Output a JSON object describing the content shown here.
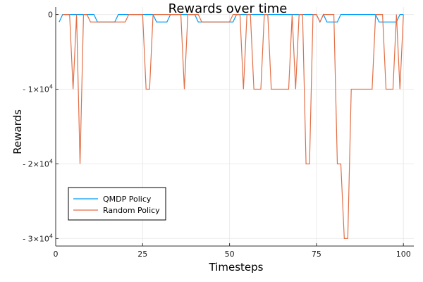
{
  "chart_data": {
    "type": "line",
    "title": "Rewards over time",
    "xlabel": "Timesteps",
    "ylabel": "Rewards",
    "xlim": [
      0,
      103
    ],
    "ylim": [
      -31000,
      1000
    ],
    "x_ticks": [
      0,
      25,
      50,
      75,
      100
    ],
    "y_ticks": [
      {
        "value": 0,
        "base": "0",
        "exp": ""
      },
      {
        "value": -10000,
        "base": "- 1×10",
        "exp": "4"
      },
      {
        "value": -20000,
        "base": "- 2×10",
        "exp": "4"
      },
      {
        "value": -30000,
        "base": "- 3×10",
        "exp": "4"
      }
    ],
    "grid": true,
    "legend_position": "bottom-left",
    "series": [
      {
        "name": "QMDP Policy",
        "color": "#009AFA",
        "points": [
          [
            1,
            -1000
          ],
          [
            2,
            0
          ],
          [
            3,
            0
          ],
          [
            4,
            0
          ],
          [
            5,
            0
          ],
          [
            6,
            0
          ],
          [
            7,
            0
          ],
          [
            8,
            0
          ],
          [
            9,
            0
          ],
          [
            10,
            0
          ],
          [
            11,
            0
          ],
          [
            12,
            -1000
          ],
          [
            13,
            -1000
          ],
          [
            14,
            -1000
          ],
          [
            15,
            -1000
          ],
          [
            16,
            -1000
          ],
          [
            17,
            -1000
          ],
          [
            18,
            0
          ],
          [
            19,
            0
          ],
          [
            20,
            0
          ],
          [
            21,
            0
          ],
          [
            22,
            0
          ],
          [
            23,
            0
          ],
          [
            24,
            0
          ],
          [
            25,
            0
          ],
          [
            26,
            0
          ],
          [
            27,
            0
          ],
          [
            28,
            0
          ],
          [
            29,
            -1000
          ],
          [
            30,
            -1000
          ],
          [
            31,
            -1000
          ],
          [
            32,
            -1000
          ],
          [
            33,
            0
          ],
          [
            34,
            0
          ],
          [
            35,
            0
          ],
          [
            36,
            0
          ],
          [
            37,
            0
          ],
          [
            38,
            0
          ],
          [
            39,
            0
          ],
          [
            40,
            0
          ],
          [
            41,
            -1000
          ],
          [
            42,
            -1000
          ],
          [
            43,
            -1000
          ],
          [
            44,
            -1000
          ],
          [
            45,
            -1000
          ],
          [
            46,
            -1000
          ],
          [
            47,
            -1000
          ],
          [
            48,
            -1000
          ],
          [
            49,
            -1000
          ],
          [
            50,
            -1000
          ],
          [
            51,
            -1000
          ],
          [
            52,
            0
          ],
          [
            53,
            0
          ],
          [
            54,
            0
          ],
          [
            55,
            0
          ],
          [
            56,
            0
          ],
          [
            57,
            0
          ],
          [
            58,
            0
          ],
          [
            59,
            0
          ],
          [
            60,
            0
          ],
          [
            61,
            0
          ],
          [
            62,
            0
          ],
          [
            63,
            0
          ],
          [
            64,
            0
          ],
          [
            65,
            0
          ],
          [
            66,
            0
          ],
          [
            67,
            0
          ],
          [
            68,
            0
          ],
          [
            69,
            0
          ],
          [
            70,
            0
          ],
          [
            71,
            0
          ],
          [
            72,
            0
          ],
          [
            73,
            0
          ],
          [
            74,
            0
          ],
          [
            75,
            0
          ],
          [
            76,
            -1000
          ],
          [
            77,
            0
          ],
          [
            78,
            -1000
          ],
          [
            79,
            -1000
          ],
          [
            80,
            -1000
          ],
          [
            81,
            -1000
          ],
          [
            82,
            0
          ],
          [
            83,
            0
          ],
          [
            84,
            0
          ],
          [
            85,
            0
          ],
          [
            86,
            0
          ],
          [
            87,
            0
          ],
          [
            88,
            0
          ],
          [
            89,
            0
          ],
          [
            90,
            0
          ],
          [
            91,
            0
          ],
          [
            92,
            0
          ],
          [
            93,
            -1000
          ],
          [
            94,
            -1000
          ],
          [
            95,
            -1000
          ],
          [
            96,
            -1000
          ],
          [
            97,
            -1000
          ],
          [
            98,
            -1000
          ],
          [
            99,
            0
          ],
          [
            100,
            0
          ]
        ]
      },
      {
        "name": "Random Policy",
        "color": "#E26F46",
        "points": [
          [
            2,
            0
          ],
          [
            3,
            0
          ],
          [
            4,
            0
          ],
          [
            5,
            -10000
          ],
          [
            6,
            0
          ],
          [
            7,
            -20000
          ],
          [
            8,
            0
          ],
          [
            9,
            0
          ],
          [
            10,
            -1000
          ],
          [
            11,
            -1000
          ],
          [
            12,
            -1000
          ],
          [
            13,
            -1000
          ],
          [
            14,
            -1000
          ],
          [
            15,
            -1000
          ],
          [
            16,
            -1000
          ],
          [
            17,
            -1000
          ],
          [
            18,
            -1000
          ],
          [
            19,
            -1000
          ],
          [
            20,
            -1000
          ],
          [
            21,
            0
          ],
          [
            22,
            0
          ],
          [
            23,
            0
          ],
          [
            24,
            0
          ],
          [
            25,
            0
          ],
          [
            26,
            -10000
          ],
          [
            27,
            -10000
          ],
          [
            28,
            0
          ],
          [
            29,
            0
          ],
          [
            30,
            0
          ],
          [
            31,
            0
          ],
          [
            32,
            0
          ],
          [
            33,
            0
          ],
          [
            34,
            0
          ],
          [
            35,
            0
          ],
          [
            36,
            0
          ],
          [
            37,
            -10000
          ],
          [
            38,
            0
          ],
          [
            39,
            0
          ],
          [
            40,
            0
          ],
          [
            41,
            0
          ],
          [
            42,
            -1000
          ],
          [
            43,
            -1000
          ],
          [
            44,
            -1000
          ],
          [
            45,
            -1000
          ],
          [
            46,
            -1000
          ],
          [
            47,
            -1000
          ],
          [
            48,
            -1000
          ],
          [
            49,
            -1000
          ],
          [
            50,
            -1000
          ],
          [
            51,
            0
          ],
          [
            52,
            0
          ],
          [
            53,
            0
          ],
          [
            54,
            -10000
          ],
          [
            55,
            0
          ],
          [
            56,
            0
          ],
          [
            57,
            -10000
          ],
          [
            58,
            -10000
          ],
          [
            59,
            -10000
          ],
          [
            60,
            0
          ],
          [
            61,
            0
          ],
          [
            62,
            -10000
          ],
          [
            63,
            -10000
          ],
          [
            64,
            -10000
          ],
          [
            65,
            -10000
          ],
          [
            66,
            -10000
          ],
          [
            67,
            -10000
          ],
          [
            68,
            0
          ],
          [
            69,
            -10000
          ],
          [
            70,
            0
          ],
          [
            71,
            0
          ],
          [
            72,
            -20000
          ],
          [
            73,
            -20000
          ],
          [
            74,
            0
          ],
          [
            75,
            0
          ],
          [
            76,
            -1000
          ],
          [
            77,
            0
          ],
          [
            78,
            0
          ],
          [
            79,
            0
          ],
          [
            80,
            0
          ],
          [
            81,
            -20000
          ],
          [
            82,
            -20000
          ],
          [
            83,
            -30000
          ],
          [
            84,
            -30000
          ],
          [
            85,
            -10000
          ],
          [
            86,
            -10000
          ],
          [
            87,
            -10000
          ],
          [
            88,
            -10000
          ],
          [
            89,
            -10000
          ],
          [
            90,
            -10000
          ],
          [
            91,
            -10000
          ],
          [
            92,
            0
          ],
          [
            93,
            0
          ],
          [
            94,
            0
          ],
          [
            95,
            -10000
          ],
          [
            96,
            -10000
          ],
          [
            97,
            -10000
          ],
          [
            98,
            0
          ],
          [
            99,
            -10000
          ],
          [
            100,
            0
          ]
        ]
      }
    ]
  },
  "colors": {
    "axis": "#333333",
    "grid": "#ebebeb",
    "legend_border": "#000000"
  }
}
